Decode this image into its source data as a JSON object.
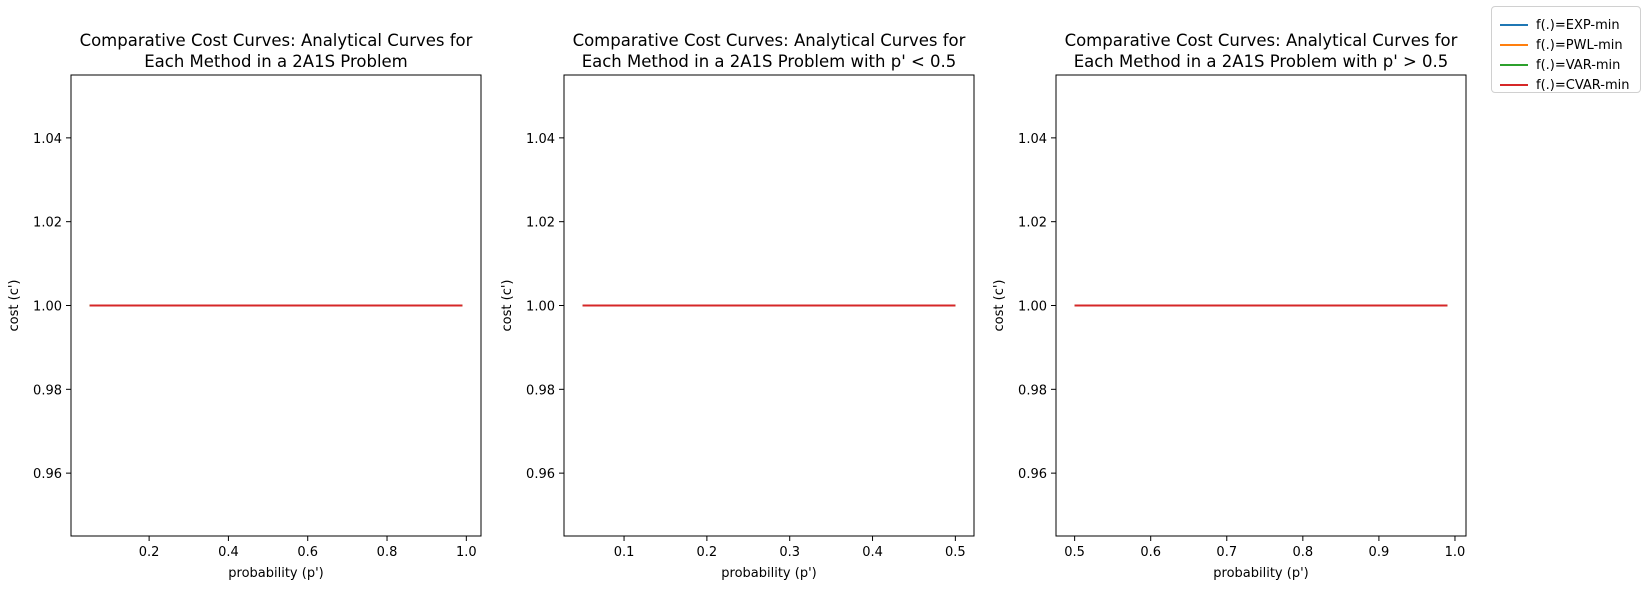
{
  "chart_data": [
    {
      "type": "line",
      "title": [
        "Comparative Cost Curves: Analytical Curves for",
        "Each Method in a 2A1S Problem"
      ],
      "xlabel": "probability (p')",
      "ylabel": "cost (c')",
      "xlim": [
        0.003,
        1.037
      ],
      "ylim": [
        0.945,
        1.055
      ],
      "xticks": [
        0.2,
        0.4,
        0.6,
        0.8,
        1.0
      ],
      "xtick_labels": [
        "0.2",
        "0.4",
        "0.6",
        "0.8",
        "1.0"
      ],
      "yticks": [
        0.96,
        0.98,
        1.0,
        1.02,
        1.04
      ],
      "ytick_labels": [
        "0.96",
        "0.98",
        "1.00",
        "1.02",
        "1.04"
      ],
      "series": [
        {
          "name": "f(.)=EXP-min",
          "color": "#1f77b4",
          "x": [
            0.05,
            0.99
          ],
          "y": [
            1.0,
            1.0
          ]
        },
        {
          "name": "f(.)=PWL-min",
          "color": "#ff7f0e",
          "x": [
            0.05,
            0.99
          ],
          "y": [
            1.0,
            1.0
          ]
        },
        {
          "name": "f(.)=VAR-min",
          "color": "#2ca02c",
          "x": [
            0.05,
            0.99
          ],
          "y": [
            1.0,
            1.0
          ]
        },
        {
          "name": "f(.)=CVAR-min",
          "color": "#d62728",
          "x": [
            0.05,
            0.99
          ],
          "y": [
            1.0,
            1.0
          ]
        }
      ]
    },
    {
      "type": "line",
      "title": [
        "Comparative Cost Curves: Analytical Curves for",
        "Each Method in a 2A1S Problem with p' < 0.5"
      ],
      "xlabel": "probability (p')",
      "ylabel": "cost (c')",
      "xlim": [
        0.0275,
        0.5225
      ],
      "ylim": [
        0.945,
        1.055
      ],
      "xticks": [
        0.1,
        0.2,
        0.3,
        0.4,
        0.5
      ],
      "xtick_labels": [
        "0.1",
        "0.2",
        "0.3",
        "0.4",
        "0.5"
      ],
      "yticks": [
        0.96,
        0.98,
        1.0,
        1.02,
        1.04
      ],
      "ytick_labels": [
        "0.96",
        "0.98",
        "1.00",
        "1.02",
        "1.04"
      ],
      "series": [
        {
          "name": "f(.)=EXP-min",
          "color": "#1f77b4",
          "x": [
            0.05,
            0.5
          ],
          "y": [
            1.0,
            1.0
          ]
        },
        {
          "name": "f(.)=PWL-min",
          "color": "#ff7f0e",
          "x": [
            0.05,
            0.5
          ],
          "y": [
            1.0,
            1.0
          ]
        },
        {
          "name": "f(.)=VAR-min",
          "color": "#2ca02c",
          "x": [
            0.05,
            0.5
          ],
          "y": [
            1.0,
            1.0
          ]
        },
        {
          "name": "f(.)=CVAR-min",
          "color": "#d62728",
          "x": [
            0.05,
            0.5
          ],
          "y": [
            1.0,
            1.0
          ]
        }
      ]
    },
    {
      "type": "line",
      "title": [
        "Comparative Cost Curves: Analytical Curves for",
        "Each Method in a 2A1S Problem with p' > 0.5"
      ],
      "xlabel": "probability (p')",
      "ylabel": "cost (c')",
      "xlim": [
        0.4755,
        1.0145
      ],
      "ylim": [
        0.945,
        1.055
      ],
      "xticks": [
        0.5,
        0.6,
        0.7,
        0.8,
        0.9,
        1.0
      ],
      "xtick_labels": [
        "0.5",
        "0.6",
        "0.7",
        "0.8",
        "0.9",
        "1.0"
      ],
      "yticks": [
        0.96,
        0.98,
        1.0,
        1.02,
        1.04
      ],
      "ytick_labels": [
        "0.96",
        "0.98",
        "1.00",
        "1.02",
        "1.04"
      ],
      "series": [
        {
          "name": "f(.)=EXP-min",
          "color": "#1f77b4",
          "x": [
            0.5,
            0.99
          ],
          "y": [
            1.0,
            1.0
          ]
        },
        {
          "name": "f(.)=PWL-min",
          "color": "#ff7f0e",
          "x": [
            0.5,
            0.99
          ],
          "y": [
            1.0,
            1.0
          ]
        },
        {
          "name": "f(.)=VAR-min",
          "color": "#2ca02c",
          "x": [
            0.5,
            0.99
          ],
          "y": [
            1.0,
            1.0
          ]
        },
        {
          "name": "f(.)=CVAR-min",
          "color": "#d62728",
          "x": [
            0.5,
            0.99
          ],
          "y": [
            1.0,
            1.0
          ]
        }
      ]
    }
  ],
  "legend": {
    "placement": "top-right",
    "items": [
      {
        "label": "f(.)=EXP-min",
        "color": "#1f77b4"
      },
      {
        "label": "f(.)=PWL-min",
        "color": "#ff7f0e"
      },
      {
        "label": "f(.)=VAR-min",
        "color": "#2ca02c"
      },
      {
        "label": "f(.)=CVAR-min",
        "color": "#d62728"
      }
    ]
  }
}
